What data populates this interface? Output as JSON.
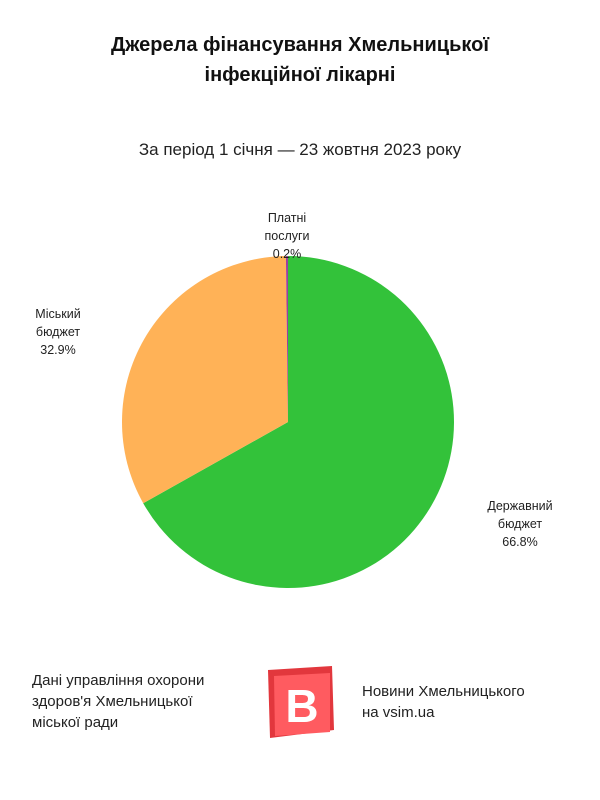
{
  "title_lines": [
    "Джерела фінансування Хмельницької",
    "інфекційної лікарні"
  ],
  "subtitle": "За період 1 січня — 23 жовтня 2023 року",
  "chart_data": {
    "type": "pie",
    "title": "Джерела фінансування Хмельницької інфекційної лікарні",
    "subtitle": "За період 1 січня — 23 жовтня 2023 року",
    "slices": [
      {
        "label_lines": [
          "Державний",
          "бюджет"
        ],
        "value": 66.8,
        "value_label": "66.8%",
        "color": "#33c23a"
      },
      {
        "label_lines": [
          "Міський",
          "бюджет"
        ],
        "value": 32.9,
        "value_label": "32.9%",
        "color": "#ffb257"
      },
      {
        "label_lines": [
          "Платні",
          "послуги"
        ],
        "value": 0.2,
        "value_label": "0.2%",
        "color": "#9b3fa0"
      }
    ]
  },
  "footer": {
    "source_lines": [
      "Дані управління охорони",
      "здоров'я Хмельницької",
      "міської ради"
    ],
    "logo_letter": "B",
    "brand_lines": [
      "Новини Хмельницького",
      "на vsim.ua"
    ]
  }
}
